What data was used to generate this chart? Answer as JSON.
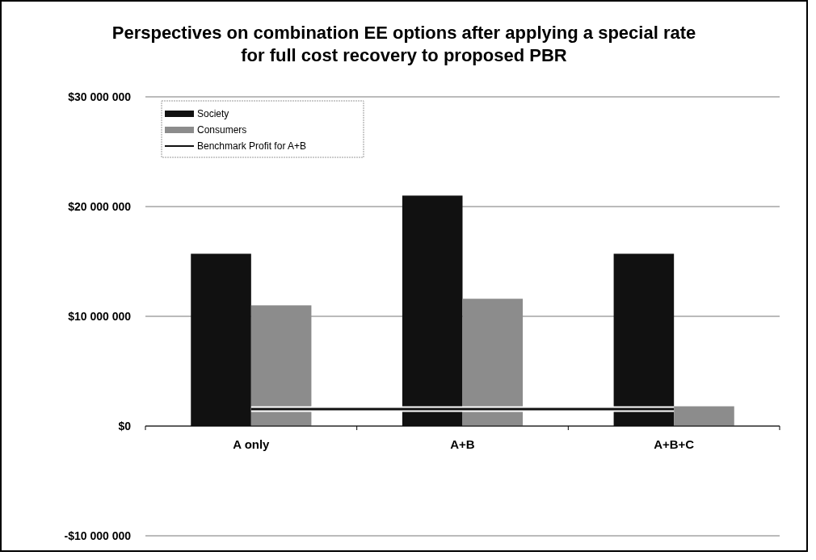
{
  "chart_data": {
    "type": "bar",
    "title": "Perspectives on combination EE options after applying a special rate for full cost recovery to proposed PBR",
    "categories": [
      "A only",
      "A+B",
      "A+B+C"
    ],
    "series": [
      {
        "name": "Society",
        "color": "#111111",
        "values": [
          15700000,
          21000000,
          15700000
        ]
      },
      {
        "name": "Consumers",
        "color": "#8c8c8c",
        "values": [
          11000000,
          11600000,
          1800000
        ]
      },
      {
        "name": "Benchmark Profit for A+B",
        "type": "line",
        "color": "#111111",
        "values": [
          1550000,
          1550000,
          1550000
        ]
      }
    ],
    "ylim": [
      -10000000,
      30000000
    ],
    "yticks": [
      {
        "value": -10000000,
        "label": "-$10 000 000"
      },
      {
        "value": 0,
        "label": "$0"
      },
      {
        "value": 10000000,
        "label": "$10 000 000"
      },
      {
        "value": 20000000,
        "label": "$20 000 000"
      },
      {
        "value": 30000000,
        "label": "$30 000 000"
      }
    ],
    "grid": "y",
    "legend": "top left"
  }
}
